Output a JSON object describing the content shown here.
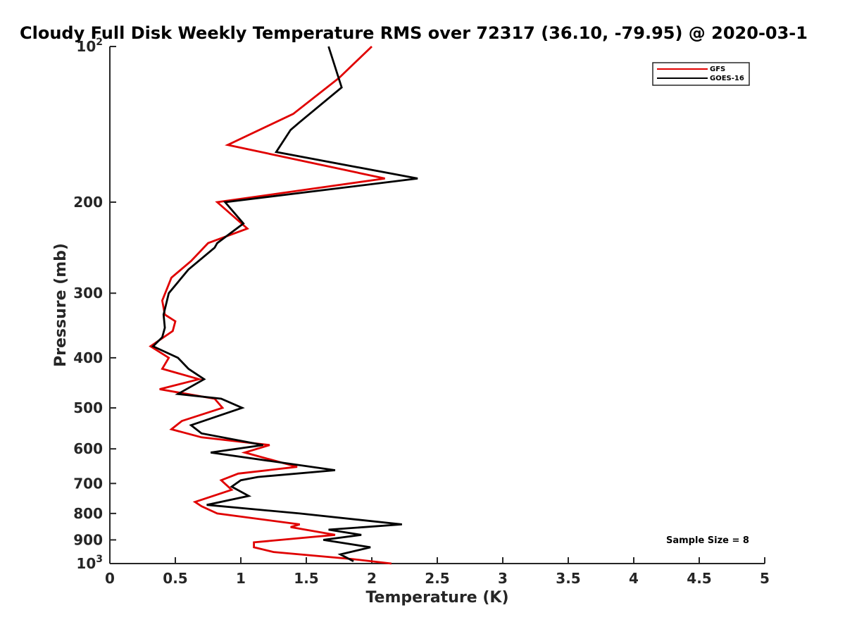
{
  "chart_data": {
    "type": "line",
    "title": "Cloudy Full Disk Weekly Temperature RMS over 72317 (36.10, -79.95) @ 2020-03-1",
    "xlabel": "Temperature (K)",
    "ylabel": "Pressure (mb)",
    "xlim": [
      0,
      5
    ],
    "ylim": [
      100,
      1000
    ],
    "y_scale": "log",
    "y_reversed": true,
    "x_ticks": [
      "0",
      "0.5",
      "1",
      "1.5",
      "2",
      "2.5",
      "3",
      "3.5",
      "4",
      "4.5",
      "5"
    ],
    "y_ticks": [
      {
        "value": 100,
        "base": "10",
        "exp": "2"
      },
      {
        "value": 200,
        "label": "200"
      },
      {
        "value": 300,
        "label": "300"
      },
      {
        "value": 400,
        "label": "400"
      },
      {
        "value": 500,
        "label": "500"
      },
      {
        "value": 600,
        "label": "600"
      },
      {
        "value": 700,
        "label": "700"
      },
      {
        "value": 800,
        "label": "800"
      },
      {
        "value": 900,
        "label": "900"
      },
      {
        "value": 1000,
        "base": "10",
        "exp": "3"
      }
    ],
    "legend_position": "top-right",
    "grid": false,
    "annotation": "Sample Size = 8",
    "series": [
      {
        "name": "GFS",
        "color": "#e00000",
        "points": [
          [
            2.0,
            100
          ],
          [
            1.75,
            115
          ],
          [
            1.4,
            135
          ],
          [
            0.9,
            155
          ],
          [
            2.1,
            180
          ],
          [
            0.82,
            200
          ],
          [
            1.05,
            225
          ],
          [
            0.75,
            240
          ],
          [
            0.62,
            260
          ],
          [
            0.47,
            280
          ],
          [
            0.4,
            310
          ],
          [
            0.42,
            330
          ],
          [
            0.5,
            340
          ],
          [
            0.48,
            355
          ],
          [
            0.31,
            380
          ],
          [
            0.45,
            400
          ],
          [
            0.4,
            420
          ],
          [
            0.68,
            440
          ],
          [
            0.38,
            460
          ],
          [
            0.8,
            480
          ],
          [
            0.86,
            500
          ],
          [
            0.55,
            530
          ],
          [
            0.47,
            550
          ],
          [
            0.7,
            570
          ],
          [
            1.22,
            590
          ],
          [
            1.03,
            610
          ],
          [
            1.43,
            650
          ],
          [
            0.98,
            670
          ],
          [
            0.85,
            690
          ],
          [
            0.93,
            720
          ],
          [
            0.65,
            760
          ],
          [
            0.7,
            775
          ],
          [
            0.82,
            800
          ],
          [
            1.45,
            840
          ],
          [
            1.38,
            850
          ],
          [
            1.72,
            880
          ],
          [
            1.1,
            910
          ],
          [
            1.1,
            930
          ],
          [
            1.25,
            950
          ],
          [
            1.85,
            980
          ],
          [
            2.15,
            1000
          ]
        ]
      },
      {
        "name": "GOES-16",
        "color": "#000000",
        "points": [
          [
            1.67,
            100
          ],
          [
            1.77,
            120
          ],
          [
            1.45,
            140
          ],
          [
            1.38,
            145
          ],
          [
            1.27,
            160
          ],
          [
            2.35,
            180
          ],
          [
            0.88,
            200
          ],
          [
            1.02,
            220
          ],
          [
            0.82,
            240
          ],
          [
            0.8,
            245
          ],
          [
            0.6,
            270
          ],
          [
            0.45,
            300
          ],
          [
            0.41,
            330
          ],
          [
            0.42,
            350
          ],
          [
            0.4,
            365
          ],
          [
            0.33,
            380
          ],
          [
            0.52,
            400
          ],
          [
            0.6,
            420
          ],
          [
            0.72,
            440
          ],
          [
            0.52,
            470
          ],
          [
            0.85,
            480
          ],
          [
            1.01,
            500
          ],
          [
            0.62,
            540
          ],
          [
            0.7,
            560
          ],
          [
            1.17,
            590
          ],
          [
            0.77,
            610
          ],
          [
            1.72,
            660
          ],
          [
            1.13,
            680
          ],
          [
            1.0,
            690
          ],
          [
            0.93,
            710
          ],
          [
            1.06,
            740
          ],
          [
            0.74,
            770
          ],
          [
            1.45,
            800
          ],
          [
            2.23,
            840
          ],
          [
            1.67,
            860
          ],
          [
            1.92,
            880
          ],
          [
            1.63,
            900
          ],
          [
            1.99,
            930
          ],
          [
            1.76,
            960
          ],
          [
            1.86,
            990
          ]
        ]
      }
    ]
  }
}
